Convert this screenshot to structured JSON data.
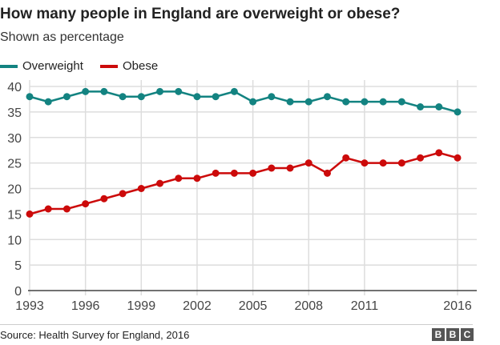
{
  "chart_data": {
    "type": "line",
    "title": "How many people in England are overweight or obese?",
    "subtitle": "Shown as percentage",
    "x": [
      1993,
      1994,
      1995,
      1996,
      1997,
      1998,
      1999,
      2000,
      2001,
      2002,
      2003,
      2004,
      2005,
      2006,
      2007,
      2008,
      2009,
      2010,
      2011,
      2012,
      2013,
      2014,
      2015,
      2016
    ],
    "xticks": [
      "1993",
      "1996",
      "1999",
      "2002",
      "2005",
      "2008",
      "2011",
      "2016"
    ],
    "yticks": [
      "0",
      "5",
      "10",
      "15",
      "20",
      "25",
      "30",
      "35",
      "40"
    ],
    "ylim": [
      0,
      40
    ],
    "grid": true,
    "legend": "top-left",
    "series": [
      {
        "name": "Overweight",
        "color": "#138381",
        "values": [
          38,
          37,
          38,
          39,
          39,
          38,
          38,
          39,
          39,
          38,
          38,
          39,
          37,
          38,
          37,
          37,
          38,
          37,
          37,
          37,
          37,
          36,
          36,
          35
        ]
      },
      {
        "name": "Obese",
        "color": "#cc0a0a",
        "values": [
          15,
          16,
          16,
          17,
          18,
          19,
          20,
          21,
          22,
          22,
          23,
          23,
          23,
          24,
          24,
          25,
          23,
          26,
          25,
          25,
          25,
          26,
          27,
          26
        ]
      }
    ]
  },
  "source": "Source: Health Survey for England, 2016",
  "logo": [
    "B",
    "B",
    "C"
  ]
}
